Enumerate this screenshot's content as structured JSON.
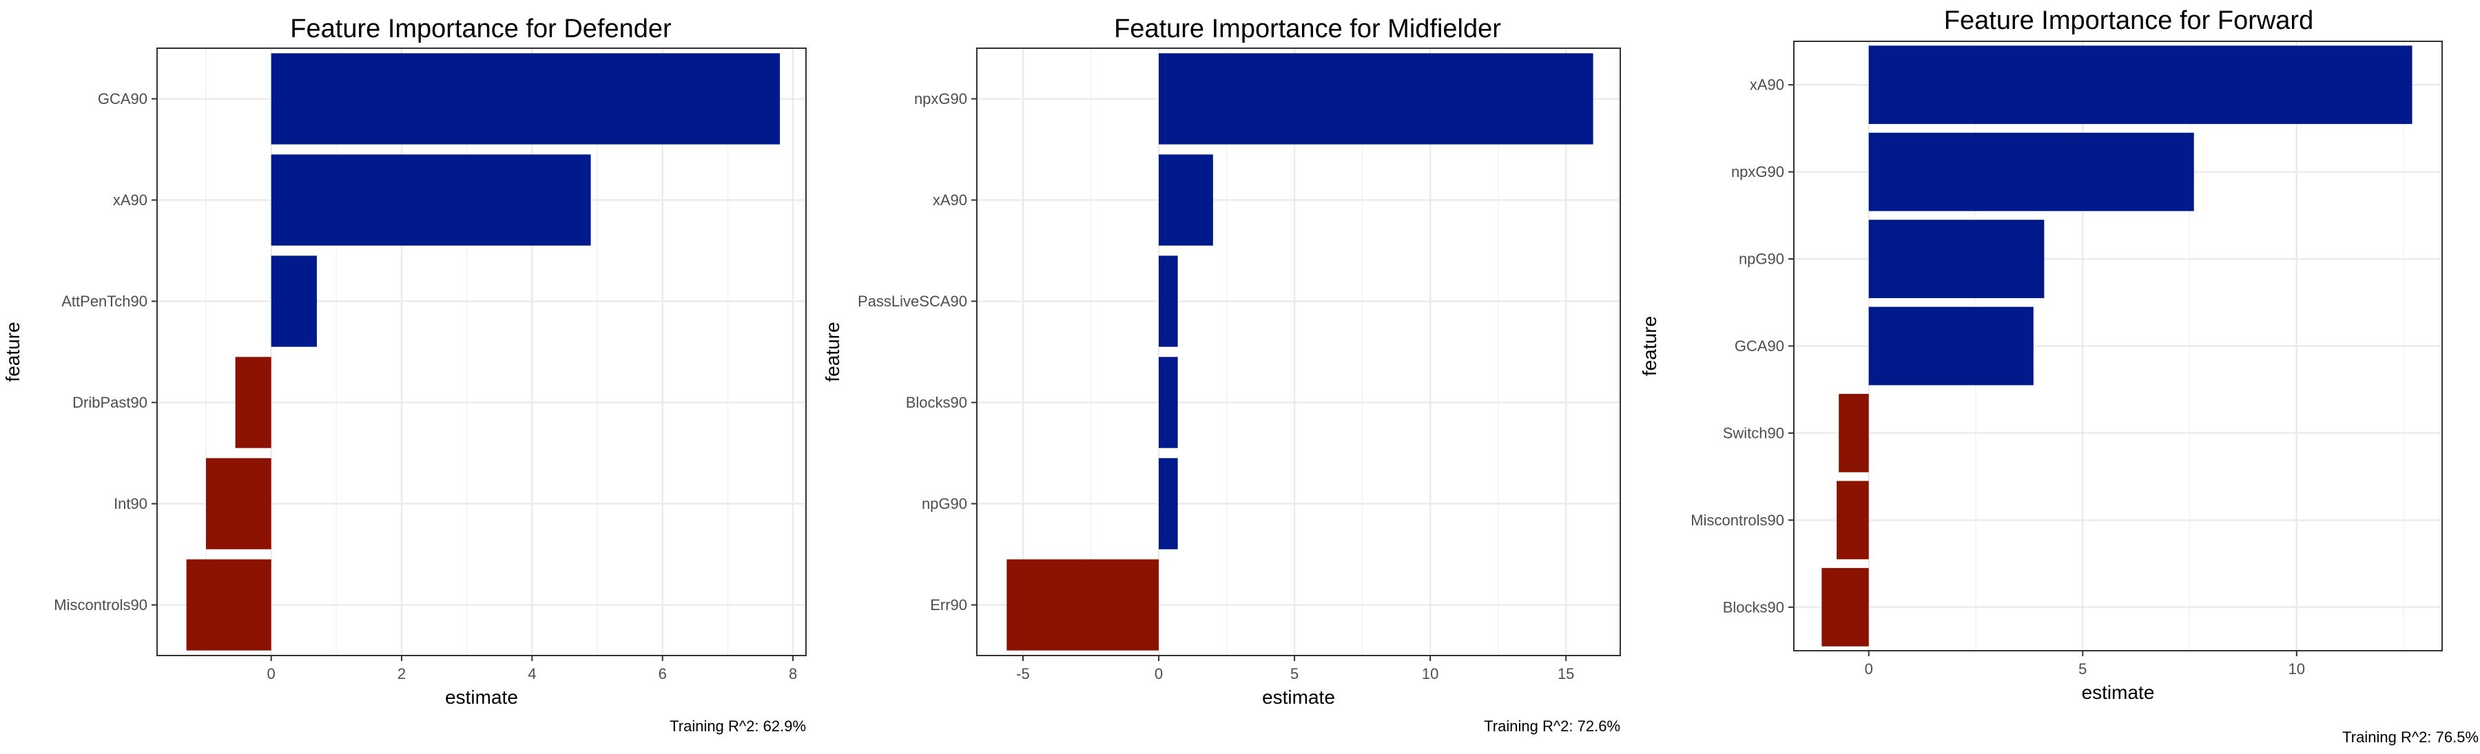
{
  "colors": {
    "positive": "#001a8c",
    "negative": "#8b1100",
    "grid_major": "#ebebeb",
    "grid_minor": "#f5f5f5",
    "panel_border": "#333333",
    "tick_text": "#4d4d4d",
    "text": "#000000"
  },
  "chart_data": [
    {
      "type": "bar",
      "orientation": "horizontal",
      "title": "Feature Importance for Defender",
      "xlabel": "estimate",
      "ylabel": "feature",
      "caption": "Training R^2: 62.9%",
      "categories": [
        "GCA90",
        "xA90",
        "AttPenTch90",
        "DribPast90",
        "Int90",
        "Miscontrols90"
      ],
      "values": [
        7.8,
        4.9,
        0.7,
        -0.55,
        -1.0,
        -1.3
      ],
      "xlim": [
        -1.75,
        8.2
      ],
      "xticks": [
        0,
        2,
        4,
        6,
        8
      ],
      "grid": true
    },
    {
      "type": "bar",
      "orientation": "horizontal",
      "title": "Feature Importance for Midfielder",
      "xlabel": "estimate",
      "ylabel": "feature",
      "caption": "Training R^2: 72.6%",
      "categories": [
        "npxG90",
        "xA90",
        "PassLiveSCA90",
        "Blocks90",
        "npG90",
        "Err90"
      ],
      "values": [
        16.0,
        2.0,
        0.7,
        0.7,
        0.7,
        -5.6
      ],
      "xlim": [
        -6.7,
        17.0
      ],
      "xticks": [
        -5,
        0,
        5,
        10,
        15
      ],
      "grid": true
    },
    {
      "type": "bar",
      "orientation": "horizontal",
      "title": "Feature Importance for Forward",
      "xlabel": "estimate",
      "ylabel": "feature",
      "caption": "Training R^2: 76.5%",
      "categories": [
        "xA90",
        "npxG90",
        "npG90",
        "GCA90",
        "Switch90",
        "Miscontrols90",
        "Blocks90"
      ],
      "values": [
        12.7,
        7.6,
        4.1,
        3.85,
        -0.7,
        -0.75,
        -1.1
      ],
      "xlim": [
        -1.75,
        13.4
      ],
      "xticks": [
        0,
        5,
        10
      ],
      "grid": true
    }
  ]
}
